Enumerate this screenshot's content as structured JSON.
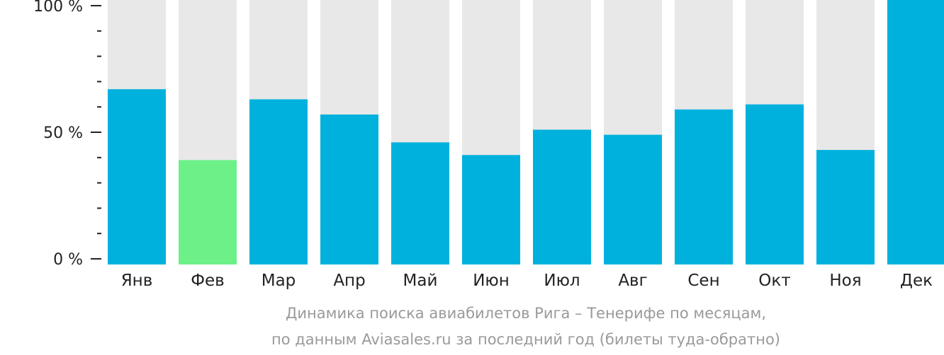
{
  "chart_data": {
    "type": "bar",
    "categories": [
      "Янв",
      "Фев",
      "Мар",
      "Апр",
      "Май",
      "Июн",
      "Июл",
      "Авг",
      "Сен",
      "Окт",
      "Ноя",
      "Дек"
    ],
    "values": [
      67,
      39,
      63,
      57,
      46,
      41,
      51,
      49,
      59,
      61,
      43,
      100
    ],
    "highlight_index": 1,
    "y_ticks": [
      "0 %",
      "50 %",
      "100 %"
    ],
    "ylim": [
      0,
      100
    ],
    "unit": "%",
    "grid": false,
    "colors": {
      "bar": "#00b1dd",
      "highlight": "#6cf087",
      "background": "#e8e8e8",
      "axis": "#222222",
      "tick_label": "#222222"
    }
  },
  "caption": {
    "line1": "Динамика поиска авиабилетов Рига – Тенерифе по месяцам,",
    "line2": "по данным Aviasales.ru за последний год (билеты туда-обратно)"
  }
}
